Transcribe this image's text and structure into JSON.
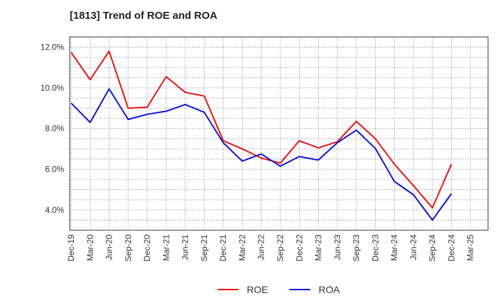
{
  "title": "[1813]  Trend of ROE and ROA",
  "chart_data": {
    "type": "line",
    "title": "[1813]  Trend of ROE and ROA",
    "xlabel": "",
    "ylabel": "",
    "categories": [
      "Dec-19",
      "Mar-20",
      "Jun-20",
      "Sep-20",
      "Dec-20",
      "Mar-21",
      "Jun-21",
      "Sep-21",
      "Dec-21",
      "Mar-22",
      "Jun-22",
      "Sep-22",
      "Dec-22",
      "Mar-23",
      "Jun-23",
      "Sep-23",
      "Dec-23",
      "Mar-24",
      "Jun-24",
      "Sep-24",
      "Dec-24",
      "Mar-25"
    ],
    "ylim": [
      3.0,
      12.5
    ],
    "yticks": [
      4.0,
      6.0,
      8.0,
      10.0,
      12.0
    ],
    "ytick_labels": [
      "4.0%",
      "6.0%",
      "8.0%",
      "10.0%",
      "12.0%"
    ],
    "grid": true,
    "legend_position": "bottom",
    "series": [
      {
        "name": "ROE",
        "color": "#ee1111",
        "values": [
          11.75,
          10.4,
          11.8,
          9.0,
          9.05,
          10.55,
          9.78,
          9.6,
          7.4,
          7.0,
          6.55,
          6.3,
          7.4,
          7.05,
          7.35,
          8.35,
          7.5,
          6.25,
          5.2,
          4.1,
          6.25,
          null
        ]
      },
      {
        "name": "ROA",
        "color": "#1111dd",
        "values": [
          9.25,
          8.3,
          9.95,
          8.45,
          8.7,
          8.85,
          9.18,
          8.8,
          7.3,
          6.4,
          6.75,
          6.15,
          6.62,
          6.45,
          7.3,
          7.92,
          7.02,
          5.4,
          4.75,
          3.5,
          4.8,
          null
        ]
      }
    ]
  },
  "legend": {
    "items": [
      {
        "label": "ROE",
        "color": "#ee1111"
      },
      {
        "label": "ROA",
        "color": "#1111dd"
      }
    ]
  }
}
